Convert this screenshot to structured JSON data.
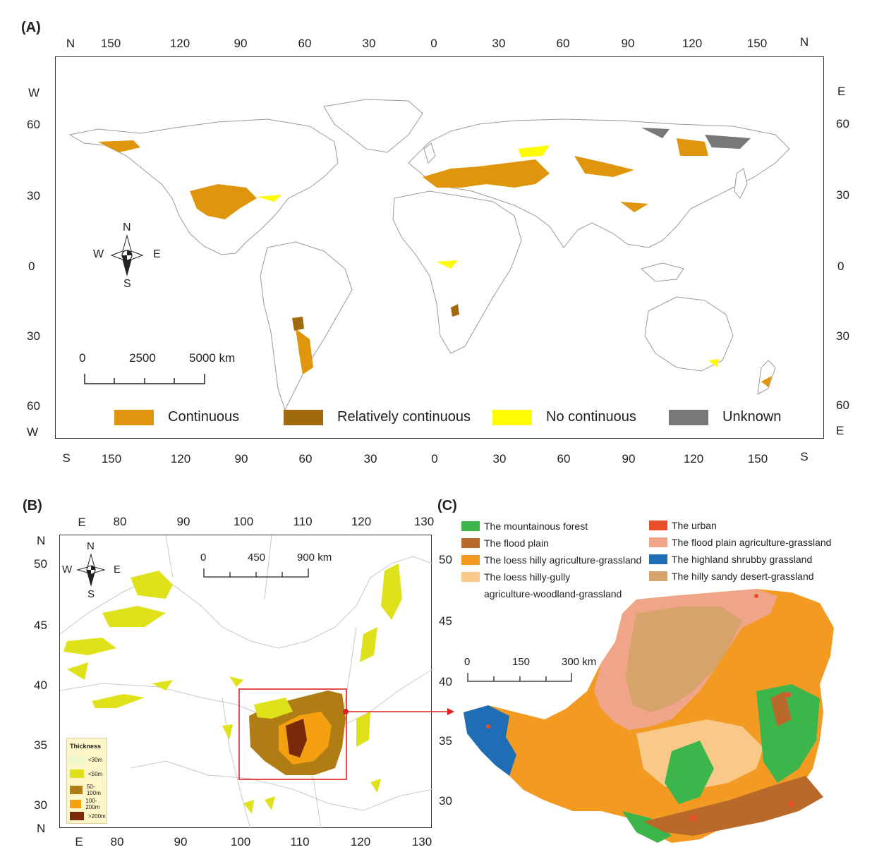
{
  "panelA": {
    "label": "(A)",
    "top_ticks": [
      "150",
      "120",
      "90",
      "60",
      "30",
      "0",
      "30",
      "60",
      "90",
      "120",
      "150"
    ],
    "bottom_ticks": [
      "150",
      "120",
      "90",
      "60",
      "30",
      "0",
      "30",
      "60",
      "90",
      "120",
      "150"
    ],
    "left_ticks": [
      "60",
      "30",
      "0",
      "30",
      "60"
    ],
    "right_ticks": [
      "60",
      "30",
      "0",
      "30",
      "60"
    ],
    "corner_top_left": "N",
    "corner_top_right": "N",
    "corner_bottom_left": "S",
    "corner_bottom_right": "S",
    "side_left_top": "W",
    "side_left_bottom": "W",
    "side_right_top": "E",
    "side_right_bottom": "E",
    "compass": {
      "n": "N",
      "s": "S",
      "e": "E",
      "w": "W"
    },
    "scale": {
      "zero": "0",
      "mid": "2500",
      "max": "5000 km"
    },
    "legend": [
      {
        "label": "Continuous",
        "color": "#e0960c"
      },
      {
        "label": "Relatively continuous",
        "color": "#a26a0f"
      },
      {
        "label": "No continuous",
        "color": "#fffb00"
      },
      {
        "label": "Unknown",
        "color": "#787878"
      }
    ]
  },
  "panelB": {
    "label": "(B)",
    "top_ticks": [
      "80",
      "90",
      "100",
      "110",
      "120",
      "130"
    ],
    "bottom_ticks": [
      "80",
      "90",
      "100",
      "110",
      "120",
      "130"
    ],
    "left_ticks": [
      "50",
      "45",
      "40",
      "35",
      "30"
    ],
    "right_ticks": [
      "50",
      "45",
      "40",
      "35",
      "30"
    ],
    "corner_top_e": "E",
    "corner_bottom_e": "E",
    "corner_top_n": "N",
    "corner_bottom_n": "N",
    "compass": {
      "n": "N",
      "s": "S",
      "e": "E",
      "w": "W"
    },
    "scale": {
      "zero": "0",
      "mid": "450",
      "max": "900 km"
    },
    "thickness_title": "Thickness",
    "thickness": [
      {
        "label": "<30m",
        "color": "#eef7cc"
      },
      {
        "label": "<50m",
        "color": "#dfe21a"
      },
      {
        "label": "50-100m",
        "color": "#b07c14"
      },
      {
        "label": "100-200m",
        "color": "#f5a010"
      },
      {
        "label": ">200m",
        "color": "#7a2a08"
      }
    ]
  },
  "panelC": {
    "label": "(C)",
    "scale": {
      "zero": "0",
      "mid": "150",
      "max": "300 km"
    },
    "legend_left": [
      {
        "label": "The mountainous forest",
        "color": "#3cb54a"
      },
      {
        "label": "The flood plain",
        "color": "#b9692a"
      },
      {
        "label": "The loess hilly agriculture-grassland",
        "color": "#f39a22"
      },
      {
        "label": "The loess hilly-gully",
        "color": "#f9c98a"
      }
    ],
    "legend_left_cont": "agriculture-woodland-grassland",
    "legend_right": [
      {
        "label": "The urban",
        "color": "#e8502c"
      },
      {
        "label": "The flood plain agriculture-grassland",
        "color": "#f0a488"
      },
      {
        "label": "The highland shrubby grassland",
        "color": "#1f6eb5"
      },
      {
        "label": "The hilly sandy desert-grassland",
        "color": "#d6a46a"
      }
    ]
  }
}
